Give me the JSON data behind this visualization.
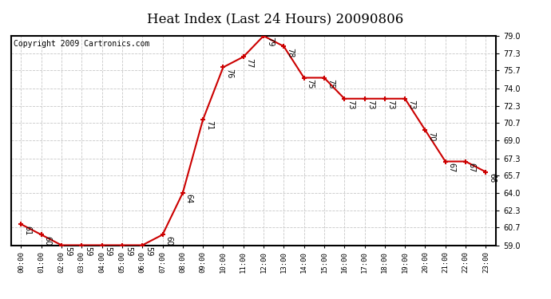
{
  "title": "Heat Index (Last 24 Hours) 20090806",
  "copyright": "Copyright 2009 Cartronics.com",
  "hours": [
    0,
    1,
    2,
    3,
    4,
    5,
    6,
    7,
    8,
    9,
    10,
    11,
    12,
    13,
    14,
    15,
    16,
    17,
    18,
    19,
    20,
    21,
    22,
    23
  ],
  "x_labels": [
    "00:00",
    "01:00",
    "02:00",
    "03:00",
    "04:00",
    "05:00",
    "06:00",
    "07:00",
    "08:00",
    "09:00",
    "10:00",
    "11:00",
    "12:00",
    "13:00",
    "14:00",
    "15:00",
    "16:00",
    "17:00",
    "18:00",
    "19:00",
    "20:00",
    "21:00",
    "22:00",
    "23:00"
  ],
  "values": [
    61,
    60,
    59,
    59,
    59,
    59,
    59,
    60,
    64,
    71,
    76,
    77,
    79,
    78,
    75,
    75,
    73,
    73,
    73,
    73,
    70,
    67,
    67,
    66
  ],
  "y_ticks": [
    59.0,
    60.7,
    62.3,
    64.0,
    65.7,
    67.3,
    69.0,
    70.7,
    72.3,
    74.0,
    75.7,
    77.3,
    79.0
  ],
  "ylim": [
    59.0,
    79.0
  ],
  "line_color": "#cc0000",
  "marker_color": "#cc0000",
  "bg_color": "#ffffff",
  "grid_color": "#c8c8c8",
  "title_fontsize": 12,
  "label_fontsize": 7,
  "copyright_fontsize": 7
}
